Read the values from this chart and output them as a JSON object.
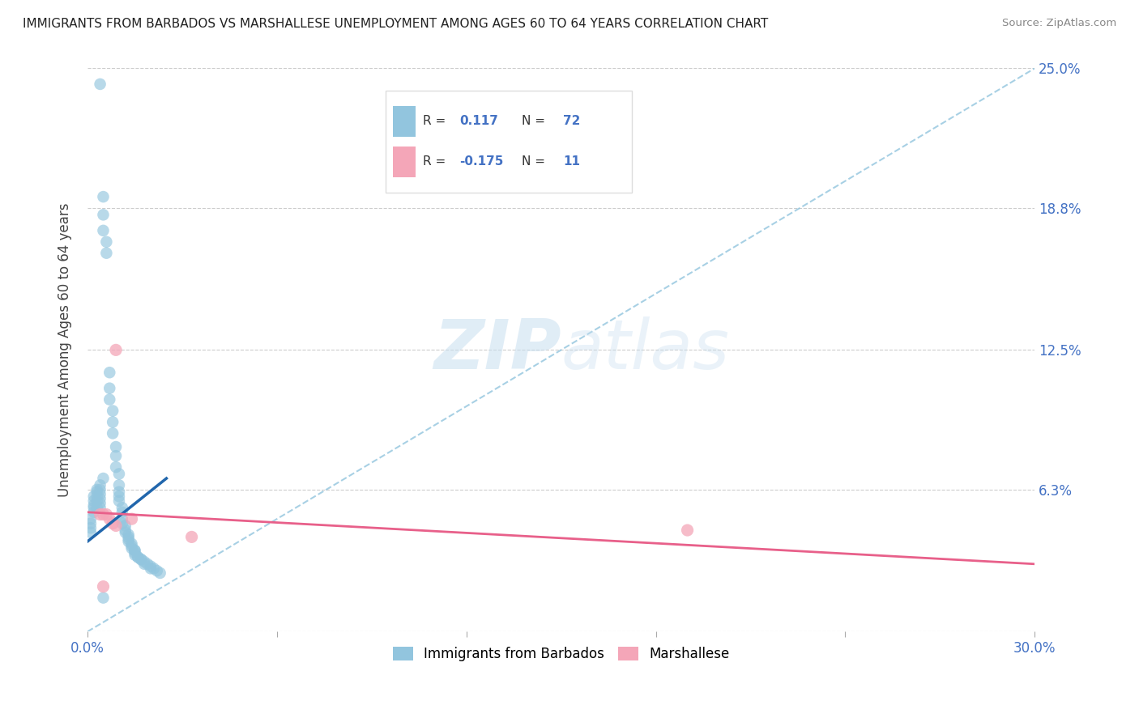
{
  "title": "IMMIGRANTS FROM BARBADOS VS MARSHALLESE UNEMPLOYMENT AMONG AGES 60 TO 64 YEARS CORRELATION CHART",
  "source": "Source: ZipAtlas.com",
  "ylabel": "Unemployment Among Ages 60 to 64 years",
  "xlim": [
    0.0,
    0.3
  ],
  "ylim": [
    0.0,
    0.25
  ],
  "xtick_labels": [
    "0.0%",
    "",
    "",
    "",
    "",
    "30.0%"
  ],
  "ytick_labels": [
    "",
    "6.3%",
    "12.5%",
    "18.8%",
    "25.0%"
  ],
  "ytick_positions": [
    0.0,
    0.063,
    0.125,
    0.188,
    0.25
  ],
  "xtick_positions": [
    0.0,
    0.06,
    0.12,
    0.18,
    0.24,
    0.3
  ],
  "legend_label1": "Immigrants from Barbados",
  "legend_label2": "Marshallese",
  "R1": 0.117,
  "N1": 72,
  "R2": -0.175,
  "N2": 11,
  "blue_color": "#92c5de",
  "pink_color": "#f4a6b8",
  "trendline1_color": "#2166ac",
  "trendline2_color": "#e8608a",
  "dashed_line_color": "#92c5de",
  "watermark_zip": "ZIP",
  "watermark_atlas": "atlas",
  "blue_scatter_x": [
    0.004,
    0.005,
    0.005,
    0.005,
    0.006,
    0.006,
    0.007,
    0.007,
    0.007,
    0.008,
    0.008,
    0.008,
    0.009,
    0.009,
    0.009,
    0.01,
    0.01,
    0.01,
    0.01,
    0.01,
    0.011,
    0.011,
    0.011,
    0.011,
    0.012,
    0.012,
    0.012,
    0.013,
    0.013,
    0.013,
    0.013,
    0.014,
    0.014,
    0.014,
    0.015,
    0.015,
    0.015,
    0.015,
    0.016,
    0.016,
    0.017,
    0.017,
    0.018,
    0.018,
    0.019,
    0.02,
    0.02,
    0.021,
    0.022,
    0.023,
    0.001,
    0.001,
    0.001,
    0.001,
    0.002,
    0.002,
    0.002,
    0.002,
    0.002,
    0.003,
    0.003,
    0.003,
    0.003,
    0.003,
    0.004,
    0.004,
    0.004,
    0.004,
    0.004,
    0.004,
    0.005,
    0.005
  ],
  "blue_scatter_y": [
    0.243,
    0.193,
    0.185,
    0.178,
    0.173,
    0.168,
    0.115,
    0.108,
    0.103,
    0.098,
    0.093,
    0.088,
    0.082,
    0.078,
    0.073,
    0.07,
    0.065,
    0.062,
    0.06,
    0.058,
    0.055,
    0.053,
    0.05,
    0.048,
    0.047,
    0.045,
    0.044,
    0.043,
    0.042,
    0.041,
    0.04,
    0.039,
    0.038,
    0.037,
    0.036,
    0.036,
    0.035,
    0.034,
    0.033,
    0.033,
    0.032,
    0.032,
    0.031,
    0.03,
    0.03,
    0.029,
    0.028,
    0.028,
    0.027,
    0.026,
    0.05,
    0.048,
    0.046,
    0.044,
    0.06,
    0.058,
    0.056,
    0.055,
    0.053,
    0.063,
    0.062,
    0.06,
    0.058,
    0.055,
    0.065,
    0.063,
    0.061,
    0.059,
    0.057,
    0.055,
    0.068,
    0.015
  ],
  "pink_scatter_x": [
    0.004,
    0.005,
    0.006,
    0.007,
    0.008,
    0.009,
    0.009,
    0.014,
    0.033,
    0.19,
    0.005
  ],
  "pink_scatter_y": [
    0.052,
    0.052,
    0.052,
    0.05,
    0.048,
    0.047,
    0.125,
    0.05,
    0.042,
    0.045,
    0.02
  ],
  "trendline1_x": [
    0.0,
    0.025
  ],
  "trendline1_y": [
    0.04,
    0.068
  ],
  "trendline2_x": [
    0.0,
    0.3
  ],
  "trendline2_y": [
    0.053,
    0.03
  ]
}
